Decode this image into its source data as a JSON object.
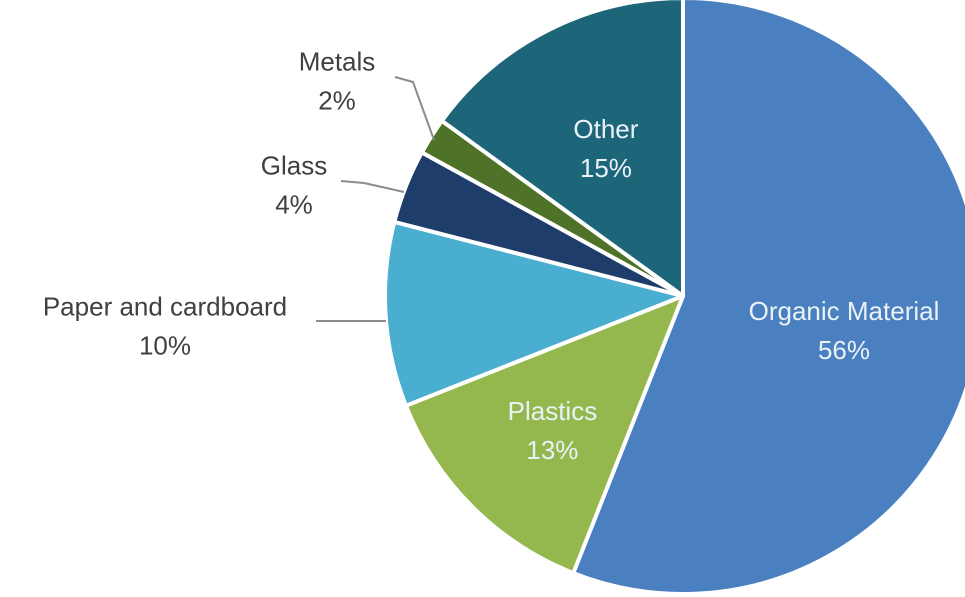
{
  "chart_data": {
    "type": "pie",
    "slices": [
      {
        "label": "Organic Material",
        "value": 56,
        "display": "56%",
        "color": "#4a7fc0",
        "label_position": "inside"
      },
      {
        "label": "Plastics",
        "value": 13,
        "display": "13%",
        "color": "#94b84e",
        "label_position": "inside"
      },
      {
        "label": "Paper and cardboard",
        "value": 10,
        "display": "10%",
        "color": "#4aaed0",
        "label_position": "outside"
      },
      {
        "label": "Glass",
        "value": 4,
        "display": "4%",
        "color": "#1f3d6a",
        "label_position": "outside"
      },
      {
        "label": "Metals",
        "value": 2,
        "display": "2%",
        "color": "#4e7228",
        "label_position": "outside"
      },
      {
        "label": "Other",
        "value": 15,
        "display": "15%",
        "color": "#1d6579",
        "label_position": "inside"
      }
    ],
    "start_angle": "12 o'clock",
    "direction": "clockwise",
    "legend": "none"
  }
}
